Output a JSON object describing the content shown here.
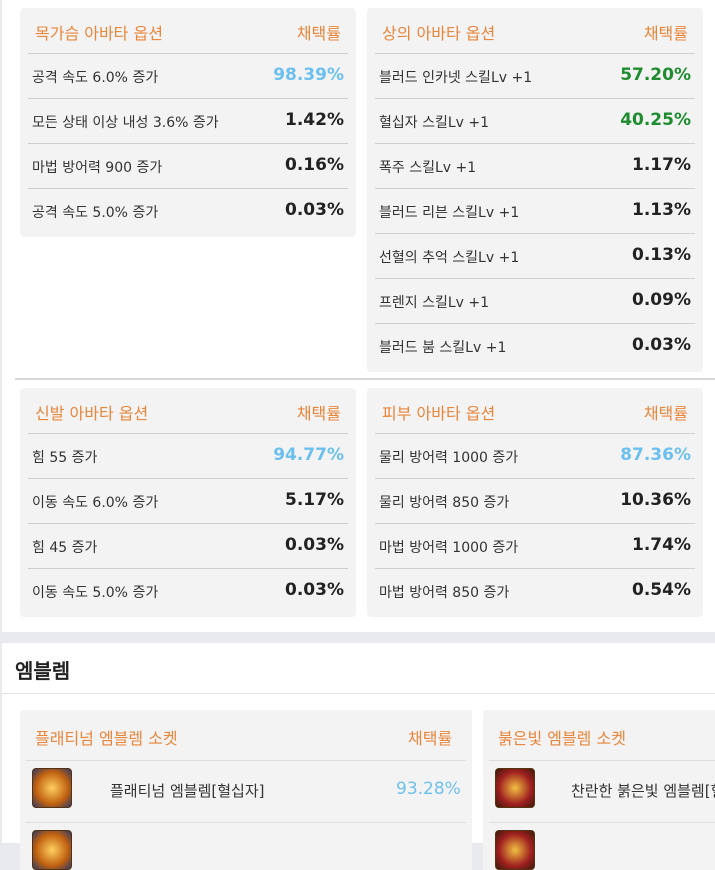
{
  "avatar_sections": [
    {
      "title": "목가슴 아바타 옵션",
      "rate_label": "채택률",
      "rows": [
        {
          "option": "공격 속도 6.0% 증가",
          "rate": "98.39%",
          "color": "#6cc0ee"
        },
        {
          "option": "모든 상태 이상 내성 3.6% 증가",
          "rate": "1.42%",
          "color": "#222222"
        },
        {
          "option": "마법 방어력 900 증가",
          "rate": "0.16%",
          "color": "#222222"
        },
        {
          "option": "공격 속도 5.0% 증가",
          "rate": "0.03%",
          "color": "#222222"
        }
      ]
    },
    {
      "title": "상의 아바타 옵션",
      "rate_label": "채택률",
      "rows": [
        {
          "option": "블러드 인카넷 스킬Lv +1",
          "rate": "57.20%",
          "color": "#1e8c2e"
        },
        {
          "option": "혈십자 스킬Lv +1",
          "rate": "40.25%",
          "color": "#1e8c2e"
        },
        {
          "option": "폭주 스킬Lv +1",
          "rate": "1.17%",
          "color": "#222222"
        },
        {
          "option": "블러드 리븐 스킬Lv +1",
          "rate": "1.13%",
          "color": "#222222"
        },
        {
          "option": "선혈의 추억 스킬Lv +1",
          "rate": "0.13%",
          "color": "#222222"
        },
        {
          "option": "프렌지 스킬Lv +1",
          "rate": "0.09%",
          "color": "#222222"
        },
        {
          "option": "블러드 붐 스킬Lv +1",
          "rate": "0.03%",
          "color": "#222222"
        }
      ]
    },
    {
      "title": "신발 아바타 옵션",
      "rate_label": "채택률",
      "rows": [
        {
          "option": "힘 55 증가",
          "rate": "94.77%",
          "color": "#6cc0ee"
        },
        {
          "option": "이동 속도 6.0% 증가",
          "rate": "5.17%",
          "color": "#222222"
        },
        {
          "option": "힘 45 증가",
          "rate": "0.03%",
          "color": "#222222"
        },
        {
          "option": "이동 속도 5.0% 증가",
          "rate": "0.03%",
          "color": "#222222"
        }
      ]
    },
    {
      "title": "피부 아바타 옵션",
      "rate_label": "채택률",
      "rows": [
        {
          "option": "물리 방어력 1000 증가",
          "rate": "87.36%",
          "color": "#6cc0ee"
        },
        {
          "option": "물리 방어력 850 증가",
          "rate": "10.36%",
          "color": "#222222"
        },
        {
          "option": "마법 방어력 1000 증가",
          "rate": "1.74%",
          "color": "#222222"
        },
        {
          "option": "마법 방어력 850 증가",
          "rate": "0.54%",
          "color": "#222222"
        }
      ]
    }
  ],
  "emblem": {
    "title": "엠블렘",
    "sockets": [
      {
        "title": "플래티넘 엠블렘 소켓",
        "rate_label": "채택률",
        "rows": [
          {
            "name": "플래티넘 엠블렘[혈십자]",
            "rate": "93.28%",
            "color": "#6cc0ee"
          }
        ]
      },
      {
        "title": "붉은빛 엠블렘 소켓",
        "rows": [
          {
            "name": "찬란한 붉은빛 엠블렘[혈"
          }
        ]
      }
    ]
  }
}
